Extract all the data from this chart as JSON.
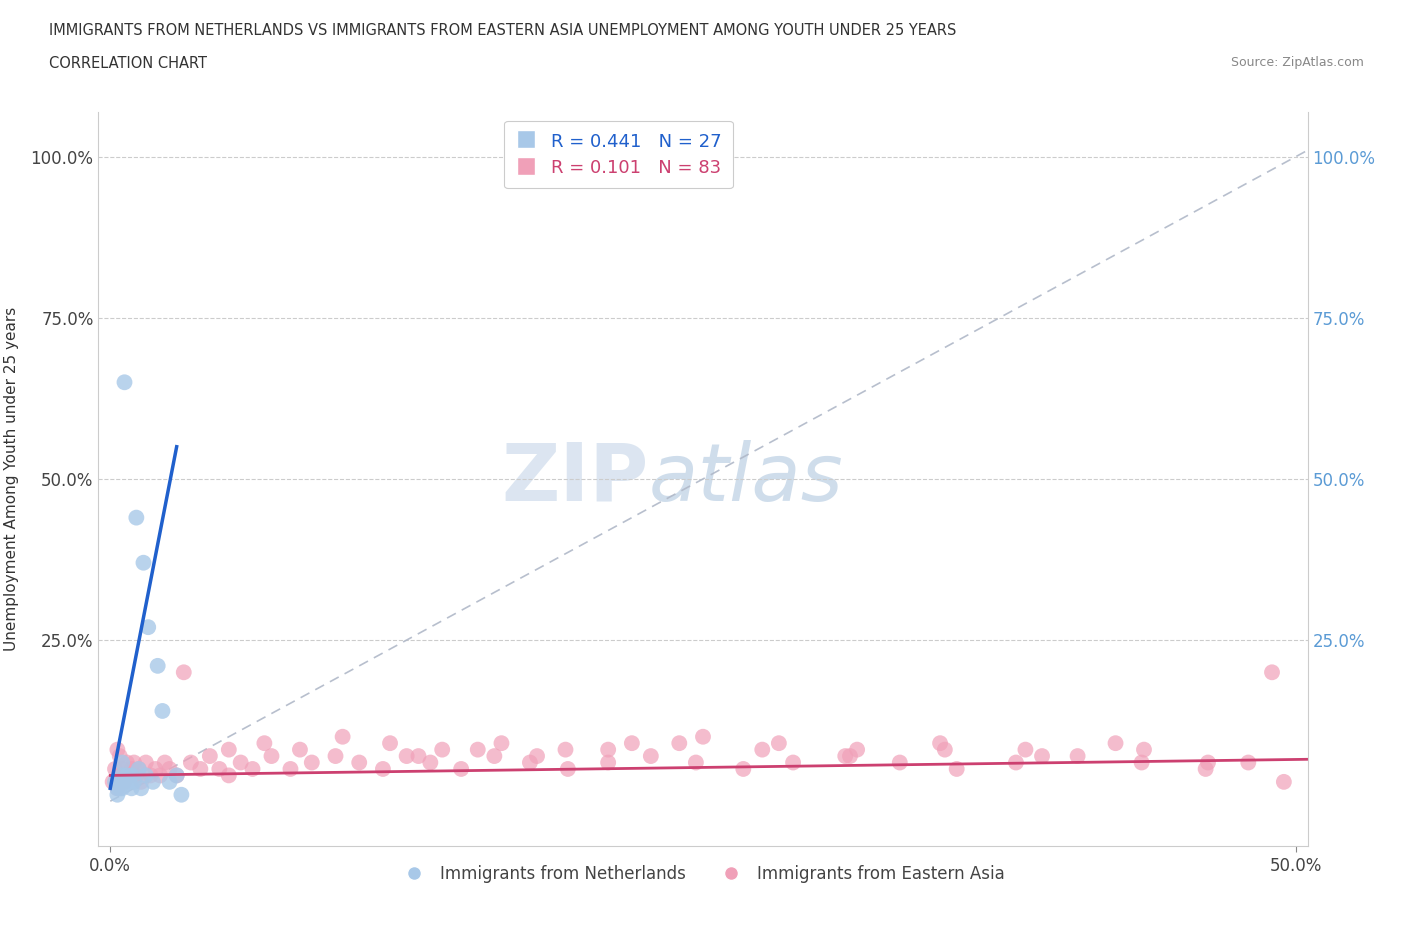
{
  "title_line1": "IMMIGRANTS FROM NETHERLANDS VS IMMIGRANTS FROM EASTERN ASIA UNEMPLOYMENT AMONG YOUTH UNDER 25 YEARS",
  "title_line2": "CORRELATION CHART",
  "source": "Source: ZipAtlas.com",
  "ylabel": "Unemployment Among Youth under 25 years",
  "xlim": [
    -0.005,
    0.505
  ],
  "ylim": [
    -0.07,
    1.07
  ],
  "ytick_values": [
    0.0,
    0.25,
    0.5,
    0.75,
    1.0
  ],
  "ytick_labels_left": [
    "",
    "25.0%",
    "50.0%",
    "75.0%",
    "100.0%"
  ],
  "ytick_labels_right": [
    "",
    "25.0%",
    "50.0%",
    "75.0%",
    "100.0%"
  ],
  "xtick_values": [
    0.0,
    0.5
  ],
  "xtick_labels": [
    "0.0%",
    "50.0%"
  ],
  "legend_r1": "R = 0.441",
  "legend_n1": "N = 27",
  "legend_r2": "R = 0.101",
  "legend_n2": "N = 83",
  "color_netherlands": "#a8c8e8",
  "color_eastern_asia": "#f0a0b8",
  "color_netherlands_line": "#2060cc",
  "color_eastern_asia_line": "#cc4070",
  "color_dashed_line": "#b0b8c8",
  "watermark_zip": "ZIP",
  "watermark_atlas": "atlas",
  "nl_x": [
    0.002,
    0.003,
    0.003,
    0.004,
    0.004,
    0.005,
    0.005,
    0.005,
    0.006,
    0.006,
    0.007,
    0.008,
    0.009,
    0.009,
    0.01,
    0.011,
    0.012,
    0.013,
    0.014,
    0.015,
    0.016,
    0.018,
    0.02,
    0.022,
    0.025,
    0.028,
    0.03
  ],
  "nl_y": [
    0.03,
    0.02,
    0.01,
    0.02,
    0.03,
    0.02,
    0.04,
    0.06,
    0.03,
    0.65,
    0.04,
    0.03,
    0.02,
    0.04,
    0.03,
    0.44,
    0.05,
    0.02,
    0.37,
    0.04,
    0.27,
    0.03,
    0.21,
    0.14,
    0.03,
    0.04,
    0.01
  ],
  "ea_x": [
    0.001,
    0.002,
    0.003,
    0.003,
    0.004,
    0.004,
    0.005,
    0.006,
    0.007,
    0.008,
    0.009,
    0.01,
    0.011,
    0.012,
    0.013,
    0.015,
    0.017,
    0.019,
    0.021,
    0.023,
    0.025,
    0.028,
    0.031,
    0.034,
    0.038,
    0.042,
    0.046,
    0.05,
    0.055,
    0.06,
    0.068,
    0.076,
    0.085,
    0.095,
    0.105,
    0.115,
    0.125,
    0.135,
    0.148,
    0.162,
    0.177,
    0.193,
    0.21,
    0.228,
    0.247,
    0.267,
    0.288,
    0.31,
    0.333,
    0.357,
    0.382,
    0.408,
    0.435,
    0.462,
    0.49,
    0.05,
    0.065,
    0.08,
    0.098,
    0.118,
    0.14,
    0.165,
    0.192,
    0.22,
    0.25,
    0.282,
    0.315,
    0.35,
    0.386,
    0.424,
    0.463,
    0.495,
    0.13,
    0.155,
    0.18,
    0.21,
    0.24,
    0.275,
    0.312,
    0.352,
    0.393,
    0.436,
    0.48
  ],
  "ea_y": [
    0.03,
    0.05,
    0.02,
    0.08,
    0.04,
    0.07,
    0.05,
    0.03,
    0.06,
    0.04,
    0.05,
    0.06,
    0.04,
    0.05,
    0.03,
    0.06,
    0.04,
    0.05,
    0.04,
    0.06,
    0.05,
    0.04,
    0.2,
    0.06,
    0.05,
    0.07,
    0.05,
    0.04,
    0.06,
    0.05,
    0.07,
    0.05,
    0.06,
    0.07,
    0.06,
    0.05,
    0.07,
    0.06,
    0.05,
    0.07,
    0.06,
    0.05,
    0.06,
    0.07,
    0.06,
    0.05,
    0.06,
    0.07,
    0.06,
    0.05,
    0.06,
    0.07,
    0.06,
    0.05,
    0.2,
    0.08,
    0.09,
    0.08,
    0.1,
    0.09,
    0.08,
    0.09,
    0.08,
    0.09,
    0.1,
    0.09,
    0.08,
    0.09,
    0.08,
    0.09,
    0.06,
    0.03,
    0.07,
    0.08,
    0.07,
    0.08,
    0.09,
    0.08,
    0.07,
    0.08,
    0.07,
    0.08,
    0.06
  ]
}
